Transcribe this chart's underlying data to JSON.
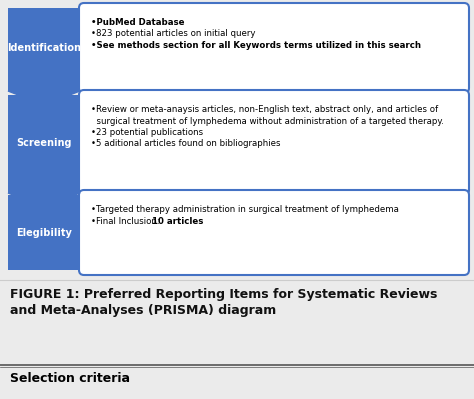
{
  "bg_color": "#ebebeb",
  "box_bg": "#ffffff",
  "box_border": "#4472c4",
  "label_bg": "#4472c4",
  "label_text_color": "#ffffff",
  "caption_color": "#111111",
  "labels": [
    "Identification",
    "Screening",
    "Elegibility"
  ],
  "box_contents": [
    [
      {
        "text": "•PubMed Database",
        "bold": true
      },
      {
        "text": "•823 potential articles on initial query",
        "bold": false
      },
      {
        "text": "•See methods section for all Keywords terms utilized in this search",
        "bold": true
      }
    ],
    [
      {
        "text": "•Review or meta-anaysis articles, non-English text, abstract only, and articles of",
        "bold": false
      },
      {
        "text": "  surgical treatment of lymphedema without administration of a targeted therapy.",
        "bold": false
      },
      {
        "text": "•23 potential publications",
        "bold": false
      },
      {
        "text": "•5 aditional articles found on bibliographies",
        "bold": false
      }
    ],
    [
      {
        "text": "•Targeted therapy administration in surgical treatment of lymphedema",
        "bold": false
      },
      {
        "text": "•Final Inclusion: ",
        "bold": false,
        "extra_bold": "10 articles"
      }
    ]
  ],
  "figure_caption_line1": "FIGURE 1: Preferred Reporting Items for Systematic Reviews",
  "figure_caption_line2": "and Meta-Analyses (PRISMA) diagram",
  "footer_text": "Selection criteria",
  "font_family": "DejaVu Sans"
}
